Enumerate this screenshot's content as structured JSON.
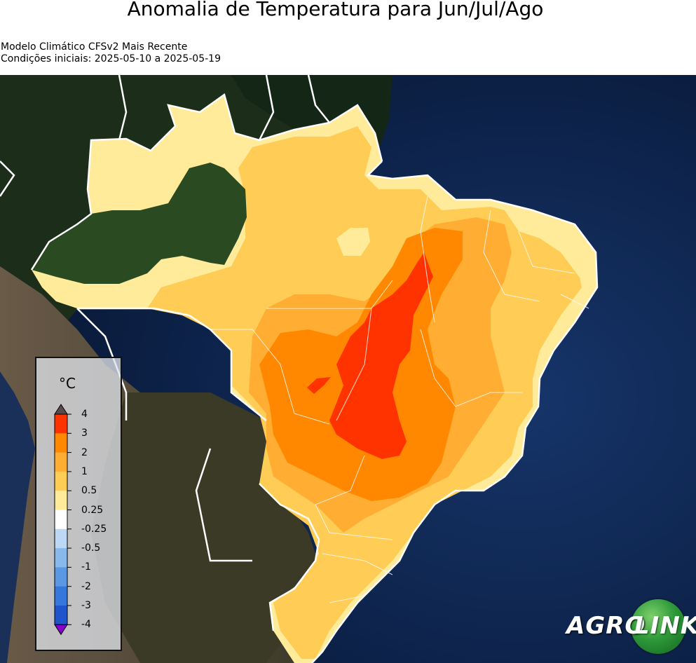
{
  "title": "Anomalia de Temperatura para Jun/Jul/Ago",
  "subtitle_line1": "Modelo Climático CFSv2 Mais Recente",
  "subtitle_line2": "Condições iniciais: 2025-05-10 a 2025-05-19",
  "legend": {
    "unit": "°C",
    "ticks": [
      "4",
      "3",
      "2",
      "1",
      "0.5",
      "0.25",
      "-0.25",
      "-0.5",
      "-1",
      "-2",
      "-3",
      "-4"
    ],
    "colors": [
      "#ff3300",
      "#ff8800",
      "#ffad33",
      "#ffcc55",
      "#ffeb99",
      "#ffffff",
      "#bcd8f4",
      "#89b8ec",
      "#5b98e4",
      "#3577dc",
      "#1f55cc"
    ],
    "over_color": "#5a4a4a",
    "under_color": "#8800cc"
  },
  "logo": {
    "part1": "AGRO",
    "part2": "LINK",
    "ball_color": "#2f9a3a"
  }
}
